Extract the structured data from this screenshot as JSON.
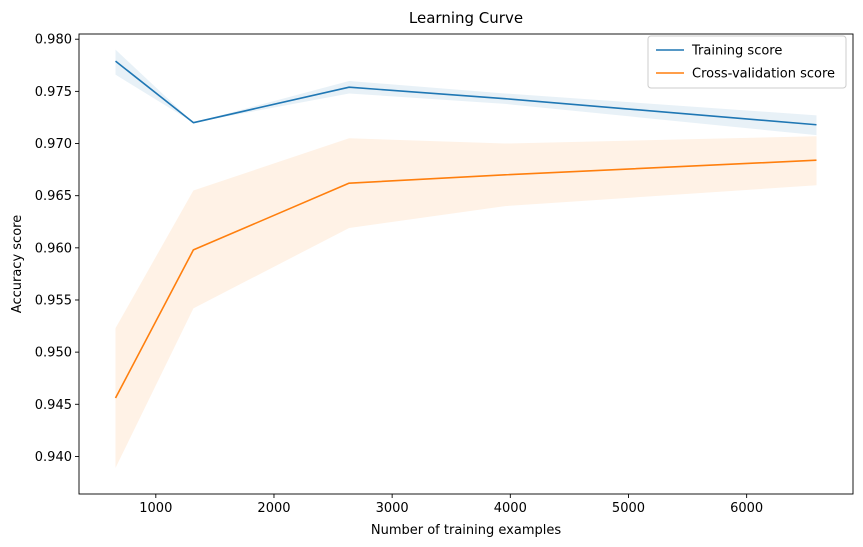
{
  "chart_data": {
    "type": "line",
    "title": "Learning Curve",
    "xlabel": "Number of training examples",
    "ylabel": "Accuracy score",
    "xlim": [
      350,
      6900
    ],
    "ylim": [
      0.9364,
      0.9805
    ],
    "xticks": [
      1000,
      2000,
      3000,
      4000,
      5000,
      6000
    ],
    "yticks": [
      0.94,
      0.945,
      0.95,
      0.955,
      0.96,
      0.965,
      0.97,
      0.975,
      0.98
    ],
    "x": [
      659,
      1318,
      2636,
      3955,
      6591
    ],
    "legend_position": "top-right",
    "grid": false,
    "series": [
      {
        "name": "Training score",
        "color": "#1f77b4",
        "values": [
          0.9779,
          0.972,
          0.9754,
          0.9743,
          0.9718
        ],
        "band_lower": [
          0.9766,
          0.972,
          0.9748,
          0.9738,
          0.9708
        ],
        "band_upper": [
          0.979,
          0.972,
          0.976,
          0.9748,
          0.9727
        ]
      },
      {
        "name": "Cross-validation score",
        "color": "#ff7f0e",
        "values": [
          0.9456,
          0.9598,
          0.9662,
          0.967,
          0.9684
        ],
        "band_lower": [
          0.9389,
          0.9542,
          0.9619,
          0.964,
          0.966
        ],
        "band_upper": [
          0.9523,
          0.9655,
          0.9705,
          0.97,
          0.9707
        ]
      }
    ]
  }
}
